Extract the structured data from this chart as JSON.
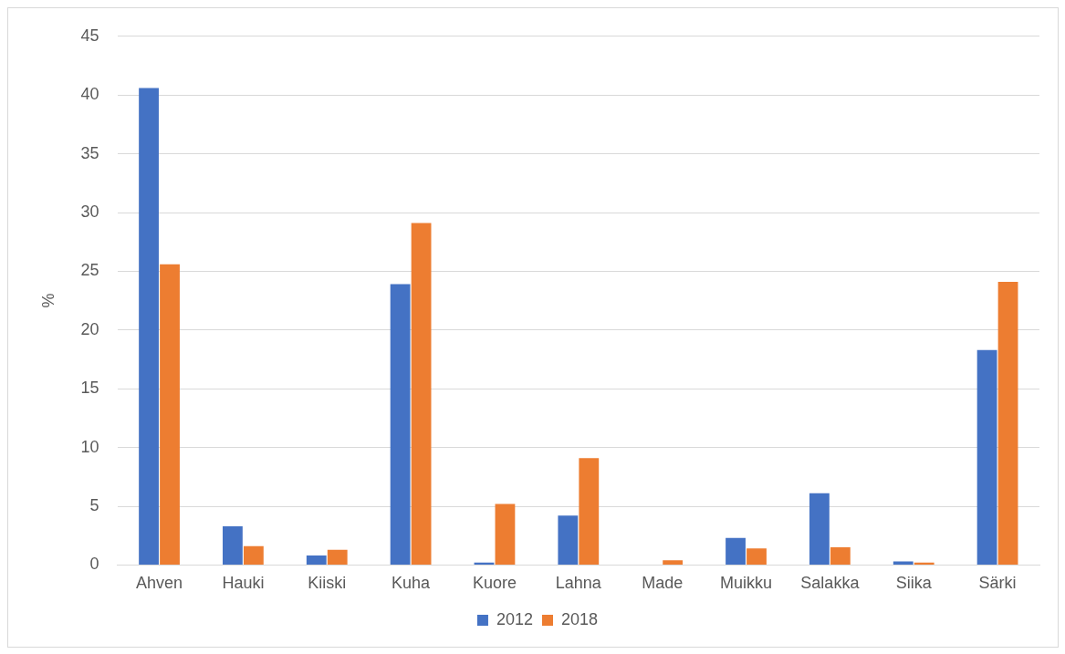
{
  "chart_data": {
    "type": "bar",
    "ylabel": "%",
    "categories": [
      "Ahven",
      "Hauki",
      "Kiiski",
      "Kuha",
      "Kuore",
      "Lahna",
      "Made",
      "Muikku",
      "Salakka",
      "Siika",
      "Särki"
    ],
    "series": [
      {
        "name": "2012",
        "color": "#4472c4",
        "values": [
          40.6,
          3.3,
          0.8,
          23.9,
          0.2,
          4.2,
          0,
          2.3,
          6.1,
          0.3,
          18.3
        ]
      },
      {
        "name": "2018",
        "color": "#ed7d31",
        "values": [
          25.6,
          1.6,
          1.3,
          29.1,
          5.2,
          9.1,
          0.4,
          1.4,
          1.5,
          0.2,
          24.1
        ]
      }
    ],
    "ylim": [
      0,
      45
    ],
    "yticks": [
      0,
      5,
      10,
      15,
      20,
      25,
      30,
      35,
      40,
      45
    ],
    "grid": "y",
    "legend": "bottom"
  }
}
